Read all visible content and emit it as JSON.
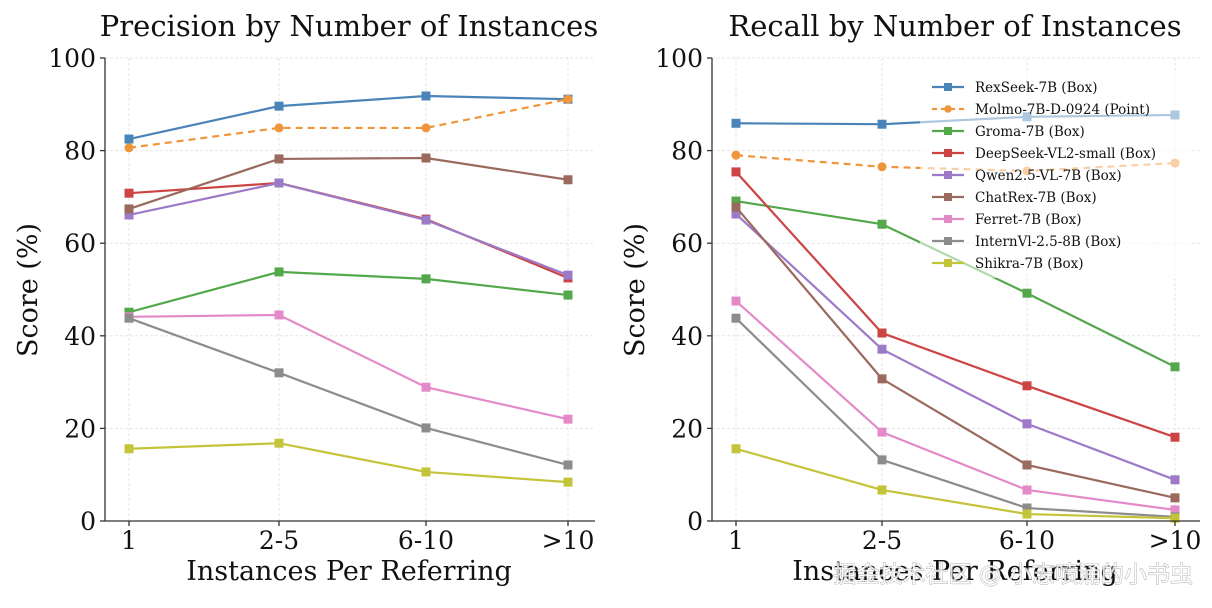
{
  "chart_data": [
    {
      "type": "line",
      "title": "Precision by Number of Instances",
      "xlabel": "Instances Per Referring",
      "ylabel": "Score (%)",
      "categories": [
        "1",
        "2-5",
        "6-10",
        ">10"
      ],
      "ylim": [
        0,
        100
      ],
      "yticks": [
        0,
        20,
        40,
        60,
        80,
        100
      ],
      "grid": true,
      "legend": null,
      "series": [
        {
          "name": "RexSeek-7B (Box)",
          "values": [
            82.5,
            89.6,
            91.8,
            91.1
          ],
          "color": "#4a84b8",
          "marker": "square",
          "dash": false
        },
        {
          "name": "Molmo-7B-D-0924 (Point)",
          "values": [
            80.6,
            84.9,
            84.9,
            91.1
          ],
          "color": "#f0953a",
          "marker": "circle",
          "dash": true
        },
        {
          "name": "Groma-7B (Box)",
          "values": [
            45.1,
            53.8,
            52.3,
            48.8
          ],
          "color": "#52a84a",
          "marker": "square",
          "dash": false
        },
        {
          "name": "DeepSeek-VL2-small (Box)",
          "values": [
            70.8,
            73.0,
            65.2,
            52.5
          ],
          "color": "#cc4444",
          "marker": "square",
          "dash": false
        },
        {
          "name": "Qwen2.5-VL-7B (Box)",
          "values": [
            66.1,
            73.0,
            65.0,
            53.1
          ],
          "color": "#9c7ac8",
          "marker": "square",
          "dash": false
        },
        {
          "name": "ChatRex-7B (Box)",
          "values": [
            67.4,
            78.2,
            78.4,
            73.7
          ],
          "color": "#9a6a5e",
          "marker": "square",
          "dash": false
        },
        {
          "name": "Ferret-7B (Box)",
          "values": [
            44.1,
            44.5,
            28.9,
            22.0
          ],
          "color": "#e48ac8",
          "marker": "square",
          "dash": false
        },
        {
          "name": "InternVl-2.5-8B (Box)",
          "values": [
            43.8,
            32.0,
            20.1,
            12.1
          ],
          "color": "#8c8c8c",
          "marker": "square",
          "dash": false
        },
        {
          "name": "Shikra-7B (Box)",
          "values": [
            15.6,
            16.8,
            10.6,
            8.4
          ],
          "color": "#c4c43a",
          "marker": "square",
          "dash": false
        }
      ]
    },
    {
      "type": "line",
      "title": "Recall by Number of Instances",
      "xlabel": "Instances Per Referring",
      "ylabel": "Score (%)",
      "categories": [
        "1",
        "2-5",
        "6-10",
        ">10"
      ],
      "ylim": [
        0,
        100
      ],
      "yticks": [
        0,
        20,
        40,
        60,
        80,
        100
      ],
      "grid": true,
      "legend": "top-right",
      "series": [
        {
          "name": "RexSeek-7B (Box)",
          "values": [
            85.9,
            85.7,
            87.3,
            87.7
          ],
          "color": "#4a84b8",
          "marker": "square",
          "dash": false
        },
        {
          "name": "Molmo-7B-D-0924 (Point)",
          "values": [
            79.0,
            76.5,
            75.6,
            77.3
          ],
          "color": "#f0953a",
          "marker": "circle",
          "dash": true
        },
        {
          "name": "Groma-7B (Box)",
          "values": [
            69.1,
            64.1,
            49.2,
            33.3
          ],
          "color": "#52a84a",
          "marker": "square",
          "dash": false
        },
        {
          "name": "DeepSeek-VL2-small (Box)",
          "values": [
            75.4,
            40.6,
            29.2,
            18.1
          ],
          "color": "#cc4444",
          "marker": "square",
          "dash": false
        },
        {
          "name": "Qwen2.5-VL-7B (Box)",
          "values": [
            66.3,
            37.1,
            21.0,
            8.9
          ],
          "color": "#9c7ac8",
          "marker": "square",
          "dash": false
        },
        {
          "name": "ChatRex-7B (Box)",
          "values": [
            67.8,
            30.7,
            12.1,
            5.0
          ],
          "color": "#9a6a5e",
          "marker": "square",
          "dash": false
        },
        {
          "name": "Ferret-7B (Box)",
          "values": [
            47.5,
            19.2,
            6.7,
            2.4
          ],
          "color": "#e48ac8",
          "marker": "square",
          "dash": false
        },
        {
          "name": "InternVl-2.5-8B (Box)",
          "values": [
            43.8,
            13.2,
            2.8,
            0.9
          ],
          "color": "#8c8c8c",
          "marker": "square",
          "dash": false
        },
        {
          "name": "Shikra-7B (Box)",
          "values": [
            15.6,
            6.7,
            1.5,
            0.6
          ],
          "color": "#c4c43a",
          "marker": "square",
          "dash": false
        }
      ]
    }
  ],
  "watermark": "掘金技术社区 @ 小志喷涌的小书虫"
}
